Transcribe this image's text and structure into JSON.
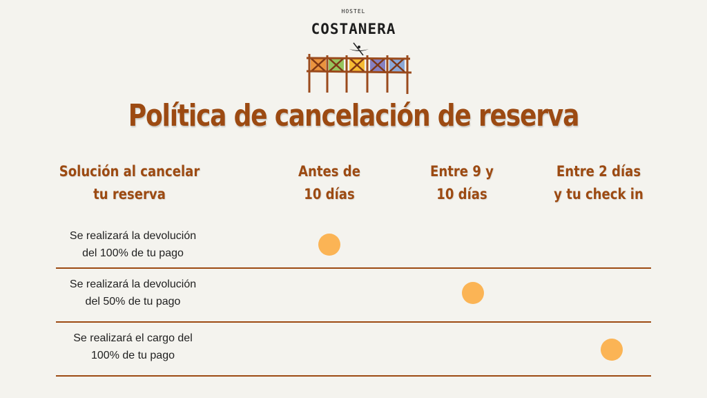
{
  "logo": {
    "small_text": "HOSTEL",
    "name": "COSTANERA"
  },
  "title": "Política de cancelación de reserva",
  "columns": [
    {
      "line1": "Solución al cancelar",
      "line2": "tu reserva"
    },
    {
      "line1": "Antes de",
      "line2": "10 días"
    },
    {
      "line1": "Entre 9 y",
      "line2": "10 días"
    },
    {
      "line1": "Entre 2 días",
      "line2": "y tu check in"
    }
  ],
  "rows": [
    {
      "line1": "Se realizará la devolución",
      "line2": "del 100% de tu pago",
      "marked_column": 1
    },
    {
      "line1": "Se realizará la devolución",
      "line2": "del 50% de tu pago",
      "marked_column": 2
    },
    {
      "line1": "Se realizará el cargo del",
      "line2": "100% de tu pago",
      "marked_column": 3
    }
  ],
  "colors": {
    "accent": "#9c4a12",
    "marker": "#fbb455",
    "background": "#f4f3ee"
  }
}
